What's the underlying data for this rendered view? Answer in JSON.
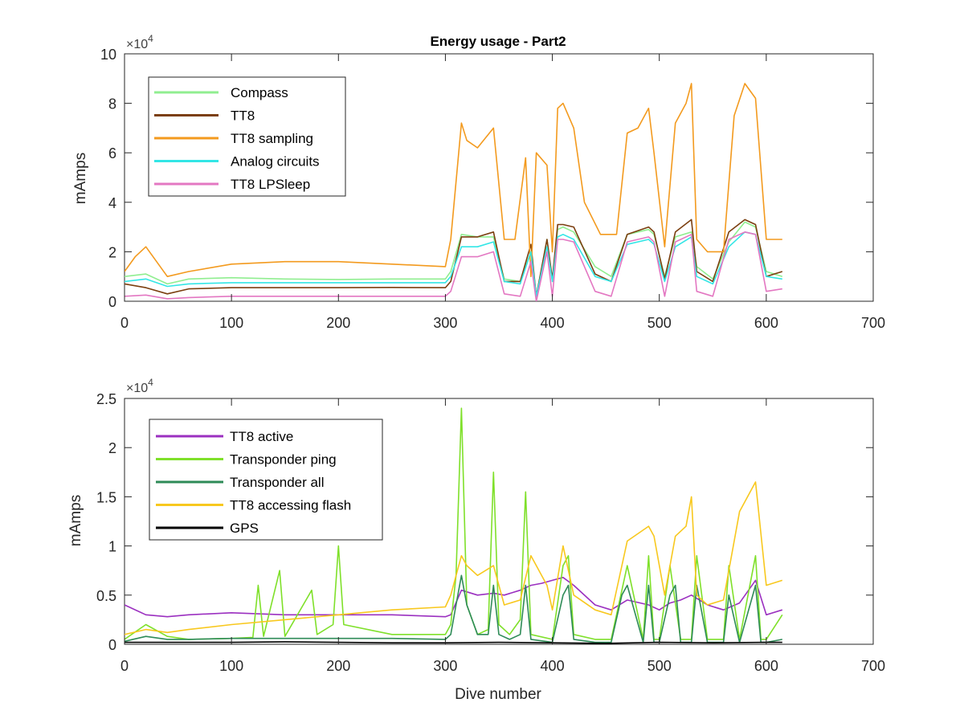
{
  "figure": {
    "background": "#ffffff"
  },
  "chart_data": [
    {
      "type": "line",
      "title": "Energy usage - Part2",
      "xlabel": "",
      "ylabel": "mAmps",
      "xlim": [
        0,
        700
      ],
      "ylim": [
        0,
        100000
      ],
      "xticks": [
        0,
        100,
        200,
        300,
        400,
        500,
        600,
        700
      ],
      "yticks": [
        0,
        2,
        4,
        6,
        8,
        10
      ],
      "xtick_labels": [
        "0",
        "100",
        "200",
        "300",
        "400",
        "500",
        "600",
        "700"
      ],
      "ytick_labels": [
        "0",
        "2",
        "4",
        "6",
        "8",
        "10"
      ],
      "y_exponent_base": "×10",
      "y_exponent_power": "4",
      "y_exponent_multiplier": 10000,
      "grid": false,
      "legend_position": "top-left",
      "series": [
        {
          "name": "Compass",
          "color": "#90ee90",
          "x": [
            0,
            20,
            40,
            60,
            100,
            150,
            200,
            250,
            300,
            305,
            315,
            330,
            345,
            355,
            370,
            380,
            385,
            395,
            400,
            405,
            410,
            420,
            440,
            455,
            470,
            490,
            495,
            505,
            515,
            530,
            535,
            550,
            565,
            580,
            590,
            600,
            615
          ],
          "y": [
            10000,
            11000,
            7000,
            9000,
            9500,
            9000,
            8800,
            9000,
            9000,
            12000,
            27000,
            26000,
            26000,
            9000,
            8000,
            20000,
            2000,
            25000,
            8000,
            29000,
            30000,
            28000,
            14000,
            10000,
            27000,
            29000,
            27000,
            10000,
            26000,
            28000,
            14000,
            9000,
            24000,
            32000,
            30000,
            12000,
            10000
          ]
        },
        {
          "name": "TT8",
          "color": "#7b3f10",
          "x": [
            0,
            20,
            40,
            60,
            100,
            150,
            200,
            250,
            300,
            305,
            315,
            330,
            345,
            355,
            370,
            380,
            385,
            395,
            400,
            405,
            410,
            420,
            440,
            455,
            470,
            490,
            495,
            505,
            515,
            530,
            535,
            550,
            565,
            580,
            590,
            600,
            615
          ],
          "y": [
            7000,
            5500,
            3000,
            5000,
            5500,
            5500,
            5500,
            5600,
            5500,
            8000,
            26000,
            26000,
            28000,
            8000,
            8000,
            23000,
            2000,
            25000,
            9000,
            31000,
            31000,
            30000,
            11000,
            8000,
            27000,
            30000,
            28000,
            9000,
            28000,
            33000,
            12000,
            8000,
            28000,
            33000,
            31000,
            10000,
            12000
          ]
        },
        {
          "name": "TT8 sampling",
          "color": "#f39a1e",
          "x": [
            0,
            10,
            20,
            40,
            60,
            100,
            150,
            200,
            250,
            300,
            305,
            315,
            320,
            330,
            345,
            355,
            365,
            375,
            380,
            385,
            395,
            400,
            405,
            410,
            420,
            430,
            445,
            460,
            470,
            480,
            490,
            495,
            505,
            515,
            525,
            530,
            535,
            545,
            560,
            570,
            580,
            590,
            600,
            615
          ],
          "y": [
            12000,
            18000,
            22000,
            10000,
            12000,
            15000,
            16000,
            16000,
            15000,
            14000,
            25000,
            72000,
            65000,
            62000,
            70000,
            25000,
            25000,
            58000,
            10000,
            60000,
            55000,
            20000,
            78000,
            80000,
            70000,
            40000,
            27000,
            27000,
            68000,
            70000,
            78000,
            60000,
            22000,
            72000,
            80000,
            88000,
            25000,
            20000,
            20000,
            75000,
            88000,
            82000,
            25000,
            25000
          ]
        },
        {
          "name": "Analog circuits",
          "color": "#33e6e6",
          "x": [
            0,
            20,
            40,
            60,
            100,
            150,
            200,
            250,
            300,
            305,
            315,
            330,
            345,
            355,
            370,
            380,
            385,
            395,
            400,
            405,
            410,
            420,
            440,
            455,
            470,
            490,
            495,
            505,
            515,
            530,
            535,
            550,
            565,
            580,
            590,
            600,
            615
          ],
          "y": [
            8000,
            9000,
            6000,
            7000,
            7500,
            7500,
            7500,
            7500,
            7500,
            10000,
            22000,
            22000,
            24000,
            8000,
            7000,
            20000,
            2000,
            22000,
            8000,
            26000,
            27000,
            25000,
            10000,
            8000,
            23000,
            25000,
            23000,
            8000,
            22000,
            26000,
            10000,
            7000,
            22000,
            28000,
            27000,
            10000,
            9000
          ]
        },
        {
          "name": "TT8 LPSleep",
          "color": "#e377c2",
          "x": [
            0,
            20,
            40,
            60,
            100,
            150,
            200,
            250,
            300,
            305,
            315,
            330,
            345,
            355,
            370,
            380,
            385,
            395,
            400,
            405,
            410,
            420,
            440,
            455,
            470,
            490,
            495,
            505,
            515,
            530,
            535,
            550,
            565,
            580,
            590,
            600,
            615
          ],
          "y": [
            2000,
            2500,
            1000,
            1500,
            2000,
            2000,
            2000,
            2000,
            2000,
            4000,
            18000,
            18000,
            20000,
            3000,
            2000,
            16000,
            0,
            20000,
            2000,
            25000,
            25000,
            24000,
            4000,
            2000,
            24000,
            26000,
            24000,
            2000,
            24000,
            27000,
            4000,
            2000,
            25000,
            28000,
            27000,
            4000,
            5000
          ]
        }
      ]
    },
    {
      "type": "line",
      "title": "",
      "xlabel": "Dive number",
      "ylabel": "mAmps",
      "xlim": [
        0,
        700
      ],
      "ylim": [
        0,
        25000
      ],
      "xticks": [
        0,
        100,
        200,
        300,
        400,
        500,
        600,
        700
      ],
      "yticks": [
        0,
        0.5,
        1,
        1.5,
        2,
        2.5
      ],
      "xtick_labels": [
        "0",
        "100",
        "200",
        "300",
        "400",
        "500",
        "600",
        "700"
      ],
      "ytick_labels": [
        "0",
        "0.5",
        "1",
        "1.5",
        "2",
        "2.5"
      ],
      "y_exponent_base": "×10",
      "y_exponent_power": "4",
      "y_exponent_multiplier": 10000,
      "grid": false,
      "legend_position": "top-left",
      "series": [
        {
          "name": "TT8 active",
          "color": "#9b30c0",
          "x": [
            0,
            20,
            40,
            60,
            100,
            150,
            200,
            250,
            300,
            305,
            315,
            330,
            345,
            355,
            370,
            380,
            390,
            400,
            410,
            420,
            440,
            455,
            470,
            490,
            500,
            510,
            520,
            530,
            545,
            560,
            575,
            590,
            600,
            615
          ],
          "y": [
            4000,
            3000,
            2800,
            3000,
            3200,
            3000,
            3000,
            3000,
            2800,
            3000,
            5500,
            5000,
            5200,
            5000,
            5500,
            6000,
            6200,
            6500,
            6800,
            6000,
            4000,
            3500,
            4500,
            4000,
            3500,
            4200,
            4500,
            5000,
            4000,
            3500,
            4200,
            6500,
            3000,
            3500
          ]
        },
        {
          "name": "Transponder ping",
          "color": "#7fe02a",
          "x": [
            0,
            20,
            40,
            60,
            100,
            120,
            125,
            130,
            145,
            150,
            175,
            180,
            195,
            200,
            205,
            250,
            300,
            305,
            310,
            315,
            320,
            330,
            340,
            345,
            350,
            360,
            370,
            375,
            380,
            400,
            410,
            415,
            420,
            440,
            455,
            470,
            485,
            490,
            495,
            500,
            510,
            520,
            530,
            535,
            545,
            560,
            565,
            575,
            590,
            595,
            600,
            615
          ],
          "y": [
            500,
            2000,
            800,
            500,
            600,
            700,
            6000,
            800,
            7500,
            800,
            5500,
            1000,
            2000,
            10000,
            2000,
            1000,
            1000,
            2000,
            7000,
            24000,
            4000,
            1000,
            1500,
            17500,
            2000,
            1000,
            2500,
            15500,
            1000,
            500,
            8000,
            9000,
            1000,
            500,
            500,
            8000,
            500,
            9000,
            500,
            500,
            8000,
            500,
            500,
            9000,
            500,
            500,
            8000,
            500,
            9000,
            500,
            500,
            3000
          ]
        },
        {
          "name": "Transponder all",
          "color": "#2e8b57",
          "x": [
            0,
            20,
            40,
            60,
            100,
            150,
            200,
            250,
            300,
            305,
            310,
            315,
            320,
            330,
            340,
            345,
            350,
            360,
            370,
            375,
            380,
            400,
            410,
            415,
            420,
            440,
            455,
            465,
            470,
            485,
            490,
            495,
            500,
            510,
            515,
            520,
            530,
            535,
            545,
            560,
            565,
            575,
            590,
            595,
            600,
            615
          ],
          "y": [
            300,
            800,
            500,
            500,
            600,
            600,
            600,
            600,
            500,
            1000,
            4000,
            7000,
            4000,
            1000,
            1000,
            6000,
            1000,
            500,
            1000,
            6000,
            500,
            200,
            5000,
            6000,
            500,
            200,
            200,
            5000,
            6000,
            200,
            6000,
            200,
            200,
            5000,
            6000,
            200,
            200,
            6000,
            200,
            200,
            5000,
            200,
            6000,
            200,
            200,
            500
          ]
        },
        {
          "name": "TT8 accessing flash",
          "color": "#f8c81e",
          "x": [
            0,
            20,
            40,
            60,
            100,
            150,
            200,
            250,
            300,
            305,
            315,
            320,
            330,
            345,
            355,
            370,
            380,
            395,
            400,
            410,
            420,
            440,
            455,
            470,
            490,
            495,
            505,
            515,
            525,
            530,
            535,
            545,
            560,
            575,
            590,
            600,
            615
          ],
          "y": [
            1000,
            1500,
            1200,
            1500,
            2000,
            2500,
            3000,
            3500,
            3800,
            5000,
            9000,
            8000,
            7000,
            8000,
            4000,
            4500,
            9000,
            6000,
            3500,
            10000,
            5000,
            3500,
            3000,
            10500,
            12000,
            11000,
            5000,
            11000,
            12000,
            15000,
            5000,
            4000,
            4500,
            13500,
            16500,
            6000,
            6500
          ]
        },
        {
          "name": "GPS",
          "color": "#000000",
          "x": [
            0,
            50,
            100,
            150,
            200,
            250,
            300,
            350,
            400,
            450,
            500,
            550,
            600,
            615
          ],
          "y": [
            200,
            200,
            200,
            250,
            200,
            150,
            150,
            200,
            150,
            100,
            200,
            150,
            200,
            200
          ]
        }
      ]
    }
  ]
}
